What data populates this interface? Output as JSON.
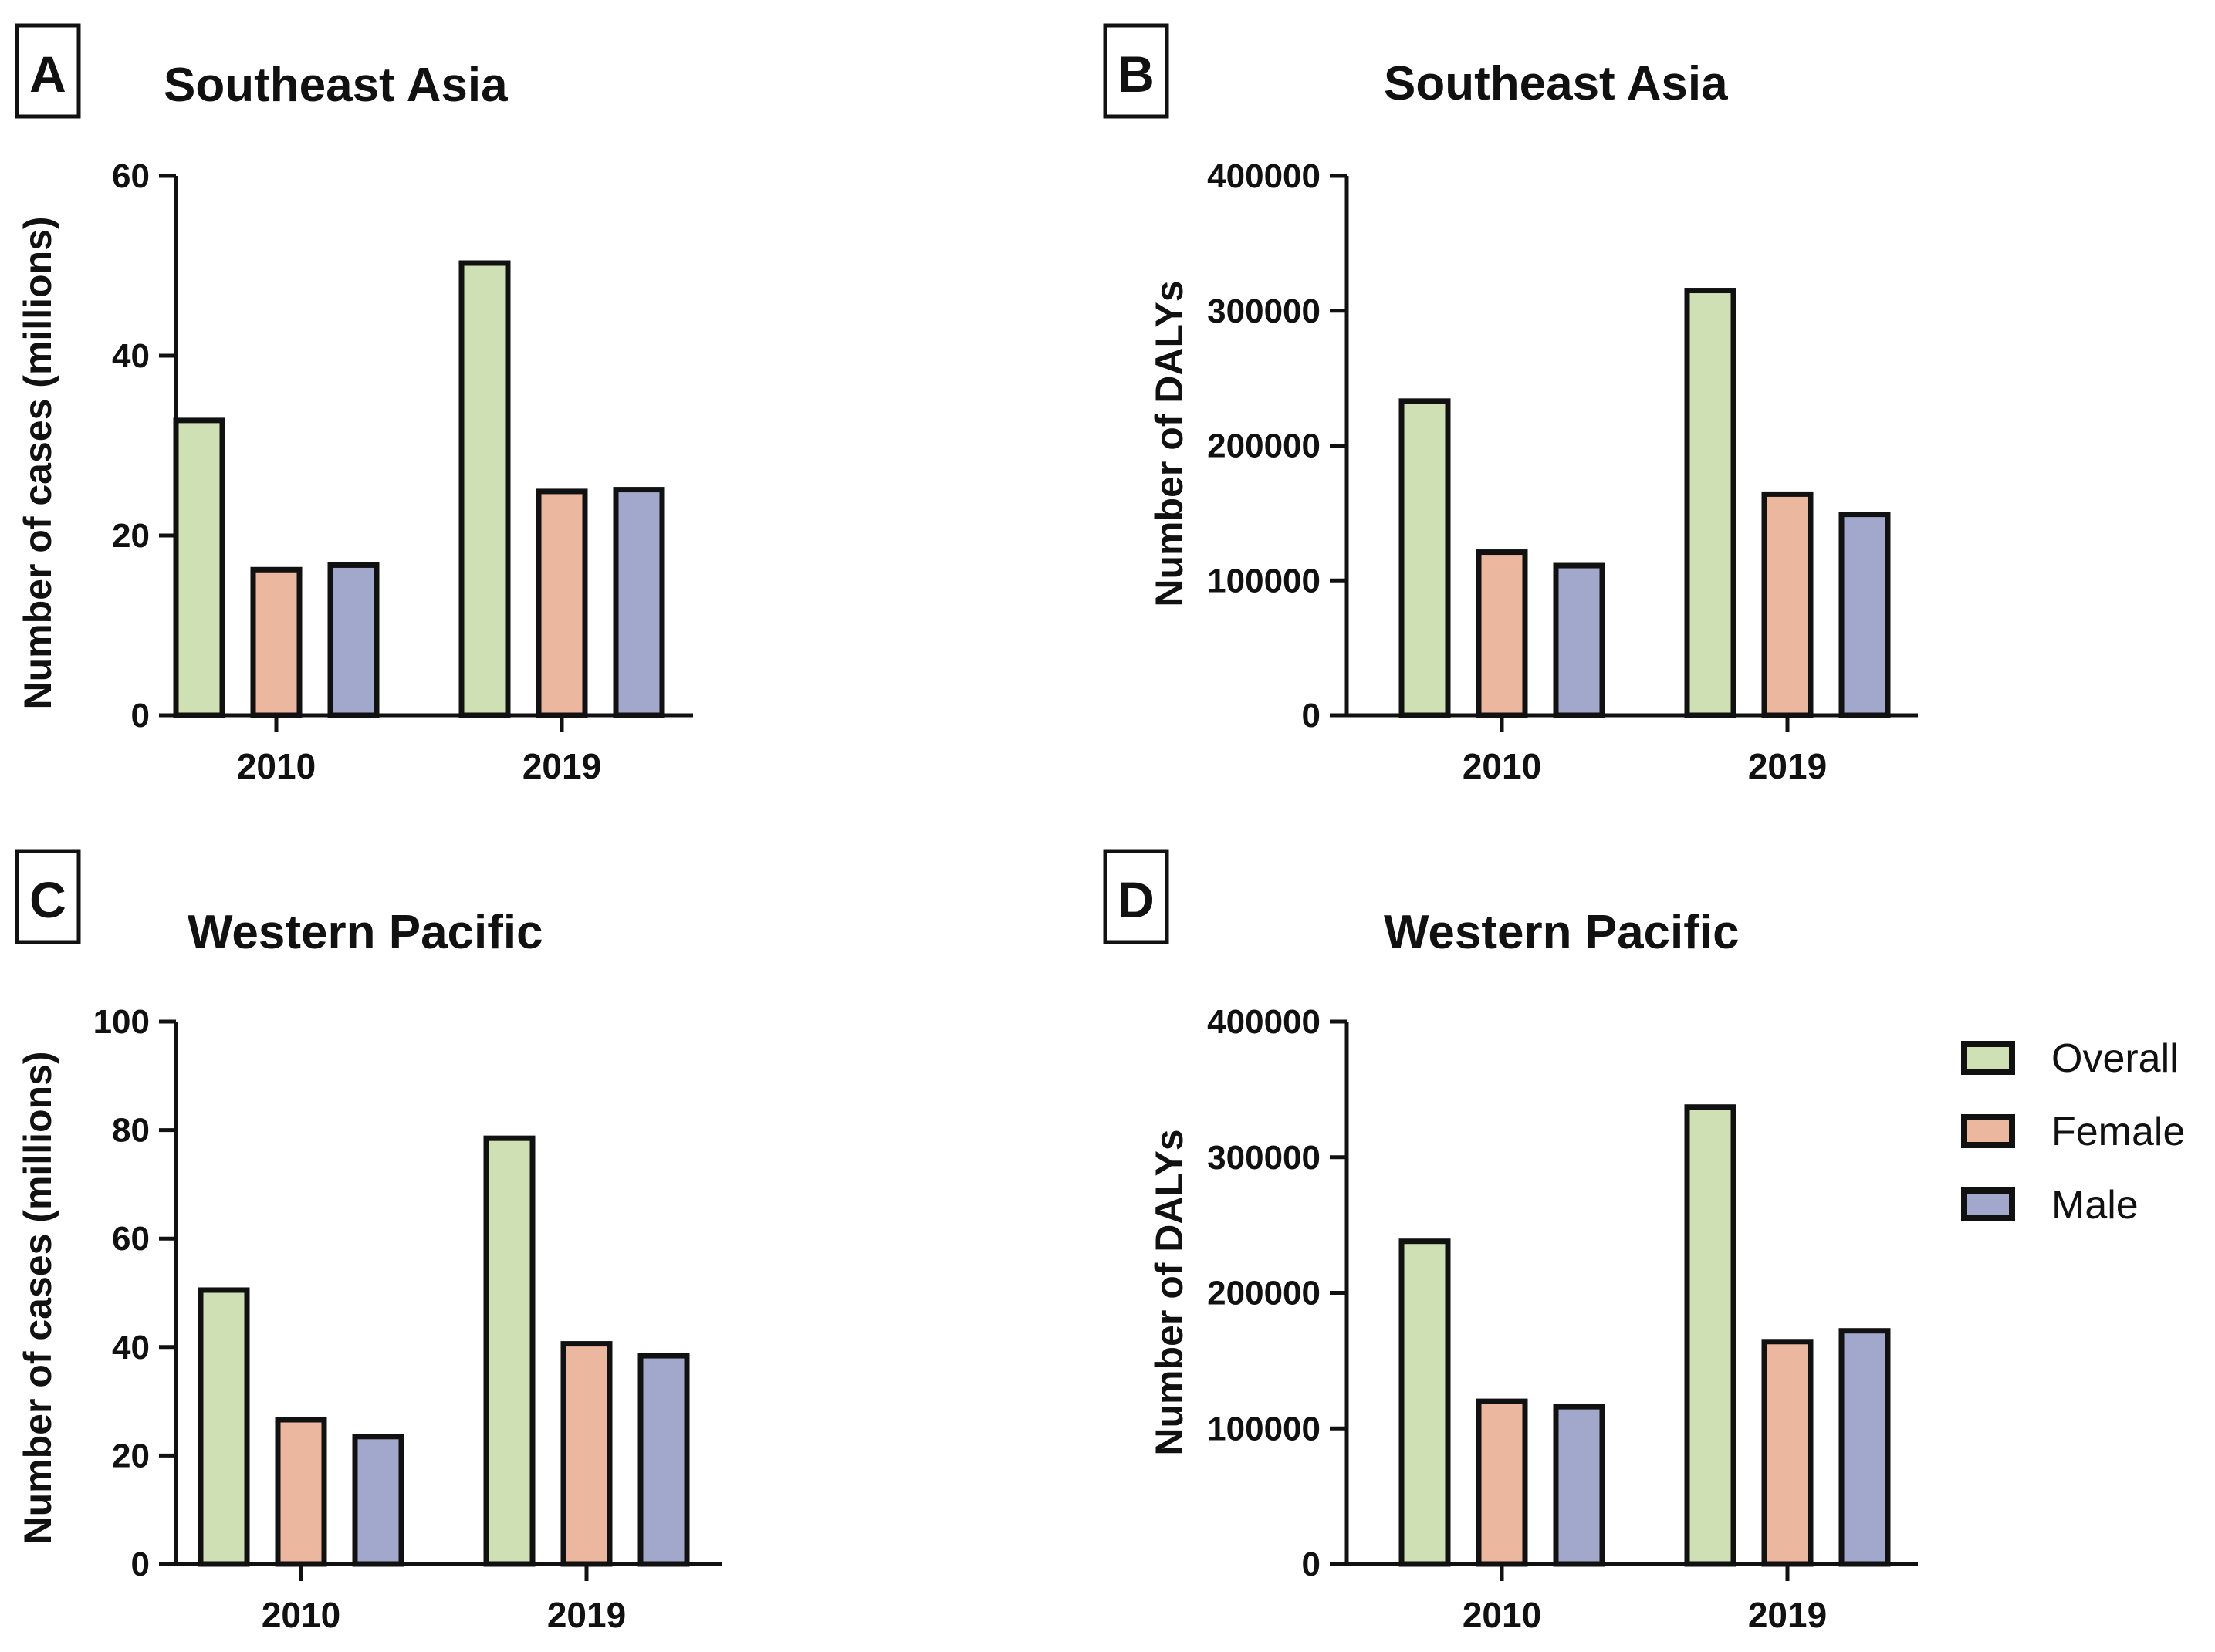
{
  "legend": [
    {
      "name": "Overall",
      "color": "#cfe0b5"
    },
    {
      "name": "Female",
      "color": "#ebb79f"
    },
    {
      "name": "Male",
      "color": "#a2a8cb"
    }
  ],
  "chart_data": [
    {
      "type": "bar",
      "panel": "A",
      "title": "Southeast Asia",
      "ylabel": "Number of cases  (millions)",
      "xlabel": "",
      "categories": [
        "2010",
        "2019"
      ],
      "ylim": [
        0,
        60
      ],
      "yticks": [
        "0",
        "20",
        "40",
        "60"
      ],
      "series": [
        {
          "name": "Overall",
          "values": [
            32.8,
            50.3
          ]
        },
        {
          "name": "Female",
          "values": [
            16.2,
            24.9
          ]
        },
        {
          "name": "Male",
          "values": [
            16.7,
            25.1
          ]
        }
      ]
    },
    {
      "type": "bar",
      "panel": "B",
      "title": "Southeast Asia",
      "ylabel": "Number of DALYs",
      "xlabel": "",
      "categories": [
        "2010",
        "2019"
      ],
      "ylim": [
        0,
        400000
      ],
      "yticks": [
        "0",
        "100000",
        "200000",
        "300000",
        "400000"
      ],
      "series": [
        {
          "name": "Overall",
          "values": [
            233000,
            315000
          ]
        },
        {
          "name": "Female",
          "values": [
            121000,
            164000
          ]
        },
        {
          "name": "Male",
          "values": [
            111000,
            149000
          ]
        }
      ]
    },
    {
      "type": "bar",
      "panel": "C",
      "title": "Western Pacific",
      "ylabel": "Number of cases (millions)",
      "xlabel": "",
      "categories": [
        "2010",
        "2019"
      ],
      "ylim": [
        0,
        100
      ],
      "yticks": [
        "0",
        "20",
        "40",
        "60",
        "80",
        "100"
      ],
      "series": [
        {
          "name": "Overall",
          "values": [
            50.5,
            78.5
          ]
        },
        {
          "name": "Female",
          "values": [
            26.6,
            40.6
          ]
        },
        {
          "name": "Male",
          "values": [
            23.5,
            38.4
          ]
        }
      ]
    },
    {
      "type": "bar",
      "panel": "D",
      "title": "Western Pacific",
      "ylabel": "Number of DALYs",
      "xlabel": "",
      "categories": [
        "2010",
        "2019"
      ],
      "ylim": [
        0,
        400000
      ],
      "yticks": [
        "0",
        "100000",
        "200000",
        "300000",
        "400000"
      ],
      "series": [
        {
          "name": "Overall",
          "values": [
            238000,
            337000
          ]
        },
        {
          "name": "Female",
          "values": [
            120000,
            164000
          ]
        },
        {
          "name": "Male",
          "values": [
            116000,
            172000
          ]
        }
      ]
    }
  ]
}
